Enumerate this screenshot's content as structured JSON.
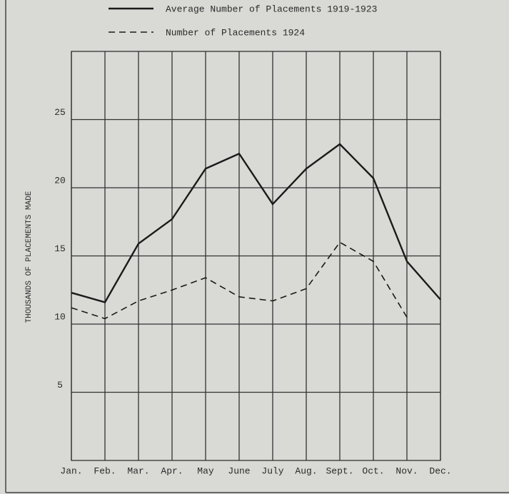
{
  "chart_data": {
    "type": "line",
    "ylabel": "THOUSANDS OF PLACEMENTS MADE",
    "categories": [
      "Jan.",
      "Feb.",
      "Mar.",
      "Apr.",
      "May",
      "June",
      "July",
      "Aug.",
      "Sept.",
      "Oct.",
      "Nov.",
      "Dec."
    ],
    "series": [
      {
        "name": "Average Number of Placements 1919-1923",
        "color": "#1a1a1a",
        "dashed": false,
        "values": [
          12.3,
          11.6,
          15.9,
          17.7,
          21.4,
          22.5,
          18.8,
          21.4,
          23.2,
          20.7,
          14.6,
          11.8
        ]
      },
      {
        "name": "Number of Placements 1924",
        "color": "#1a1a1a",
        "dashed": true,
        "values": [
          11.2,
          10.4,
          11.7,
          12.5,
          13.4,
          12.0,
          11.7,
          12.6,
          16.0,
          14.6,
          10.5,
          null
        ]
      }
    ],
    "ylim": [
      0,
      30
    ],
    "yticks": [
      5,
      10,
      15,
      20,
      25
    ],
    "grid": true
  }
}
